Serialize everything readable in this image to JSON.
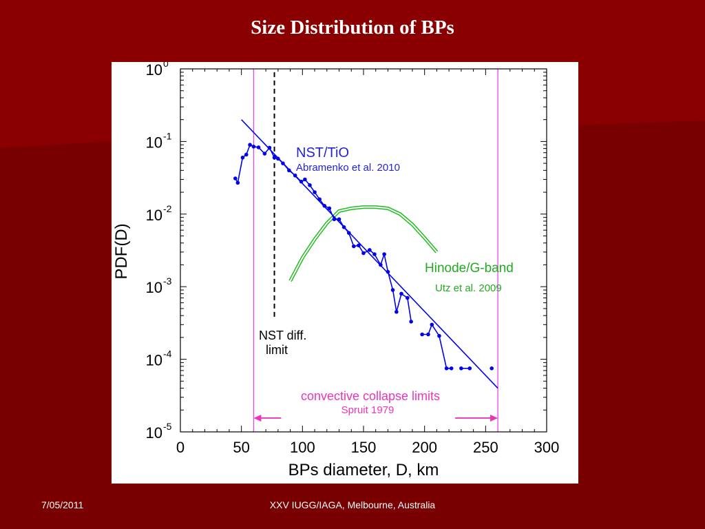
{
  "slide": {
    "title": "Size Distribution of BPs",
    "footer_date": "7/05/2011",
    "footer_event": "XXV IUGG/IAGA, Melbourne, Australia",
    "colors": {
      "background": "#7a0000",
      "background_band": "#8c0000",
      "text": "#ffffff"
    }
  },
  "chart_data": {
    "type": "scatter",
    "xlabel": "BPs diameter, D, km",
    "ylabel": "PDF(D)",
    "xlim": [
      0,
      300
    ],
    "ylim": [
      1e-05,
      1
    ],
    "yscale": "log",
    "x_ticks": [
      "0",
      "50",
      "100",
      "150",
      "200",
      "250",
      "300"
    ],
    "y_ticks": [
      {
        "base": "10",
        "exp": "0"
      },
      {
        "base": "10",
        "exp": "-1"
      },
      {
        "base": "10",
        "exp": "-2"
      },
      {
        "base": "10",
        "exp": "-3"
      },
      {
        "base": "10",
        "exp": "-4"
      },
      {
        "base": "10",
        "exp": "-5"
      }
    ],
    "series": [
      {
        "name": "NST/TiO",
        "color": "#0000ee",
        "marker": "dot",
        "points": [
          [
            45,
            0.031
          ],
          [
            47,
            0.027
          ],
          [
            51,
            0.06
          ],
          [
            54,
            0.066
          ],
          [
            57,
            0.09
          ],
          [
            60,
            0.085
          ],
          [
            64,
            0.083
          ],
          [
            69,
            0.068
          ],
          [
            73,
            0.082
          ],
          [
            77,
            0.06
          ],
          [
            80,
            0.058
          ],
          [
            84,
            0.05
          ],
          [
            89,
            0.04
          ],
          [
            94,
            0.034
          ],
          [
            99,
            0.028
          ],
          [
            102,
            0.03
          ],
          [
            106,
            0.025
          ],
          [
            110,
            0.02
          ],
          [
            114,
            0.016
          ],
          [
            118,
            0.013
          ],
          [
            122,
            0.012
          ],
          [
            126,
            0.0085
          ],
          [
            130,
            0.0085
          ],
          [
            134,
            0.0066
          ],
          [
            138,
            0.0055
          ],
          [
            142,
            0.0036
          ],
          [
            146,
            0.0037
          ],
          [
            150,
            0.0029
          ],
          [
            155,
            0.0032
          ],
          [
            159,
            0.0028
          ],
          [
            164,
            0.002
          ],
          [
            167,
            0.0028
          ],
          [
            170,
            0.0016
          ],
          [
            174,
            0.0009
          ],
          [
            177,
            0.00045
          ],
          [
            181,
            0.0008
          ],
          [
            186,
            0.0007
          ],
          [
            189,
            0.00033
          ],
          [
            198,
            0.00022
          ],
          [
            203,
            0.00022
          ],
          [
            206,
            0.0003
          ],
          [
            212,
            0.00021
          ],
          [
            218,
            7.5e-05
          ],
          [
            222,
            7.5e-05
          ],
          [
            230,
            7.5e-05
          ],
          [
            237,
            7.5e-05
          ],
          [
            255,
            7.5e-05
          ]
        ]
      },
      {
        "name": "power-law fit",
        "color": "#0000ee",
        "line": [
          [
            50,
            0.2
          ],
          [
            260,
            4e-05
          ]
        ]
      },
      {
        "name": "Hinode/G-band",
        "color": "#22bb22",
        "double_line": true,
        "points": [
          [
            90,
            0.0012
          ],
          [
            100,
            0.0025
          ],
          [
            110,
            0.0045
          ],
          [
            120,
            0.0075
          ],
          [
            130,
            0.011
          ],
          [
            140,
            0.012
          ],
          [
            150,
            0.0125
          ],
          [
            160,
            0.0125
          ],
          [
            170,
            0.012
          ],
          [
            180,
            0.01
          ],
          [
            190,
            0.0072
          ],
          [
            200,
            0.0047
          ],
          [
            210,
            0.003
          ]
        ]
      }
    ],
    "reference_lines": [
      {
        "x": 60,
        "color": "#ee44ee",
        "style": "solid"
      },
      {
        "x": 260,
        "color": "#ee44ee",
        "style": "solid"
      },
      {
        "x": 77,
        "color": "#000000",
        "style": "dashed",
        "y_range": [
          0.00038,
          0.9
        ]
      }
    ],
    "annotations": {
      "nst_title": "NST/TiO",
      "nst_ref": "Abramenko et al. 2010",
      "hinode_title": "Hinode/G-band",
      "hinode_ref": "Utz et al. 2009",
      "diff_limit_1": "NST diff.",
      "diff_limit_2": "limit",
      "collapse_title": "convective collapse limits",
      "collapse_ref": "Spruit 1979",
      "collapse_arrow_x": [
        60,
        260
      ],
      "collapse_arrow_y": 1.55e-05
    }
  }
}
